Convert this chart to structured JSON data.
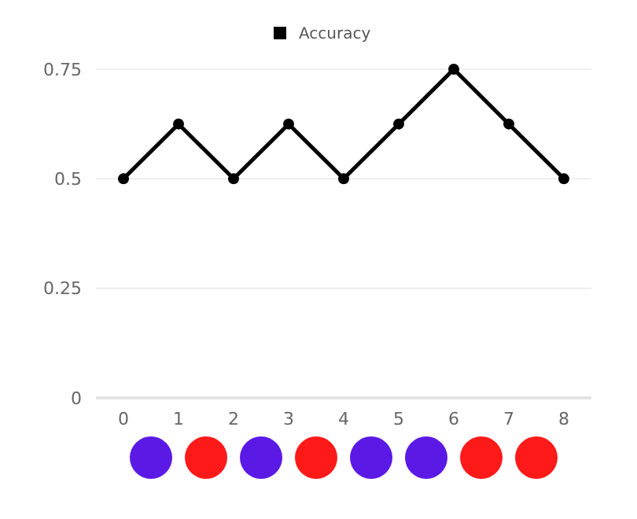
{
  "chart_data": {
    "type": "line",
    "categories": [
      "0",
      "1",
      "2",
      "3",
      "4",
      "5",
      "6",
      "7",
      "8"
    ],
    "series": [
      {
        "name": "Accuracy",
        "color": "#000000",
        "values": [
          0.5,
          0.625,
          0.5,
          0.625,
          0.5,
          0.625,
          0.75,
          0.625,
          0.5
        ]
      }
    ],
    "ylim": [
      0,
      0.75
    ],
    "yticks": [
      0,
      0.25,
      0.5,
      0.75
    ],
    "grid": "y",
    "legend": "top",
    "marker": "circle"
  }
}
